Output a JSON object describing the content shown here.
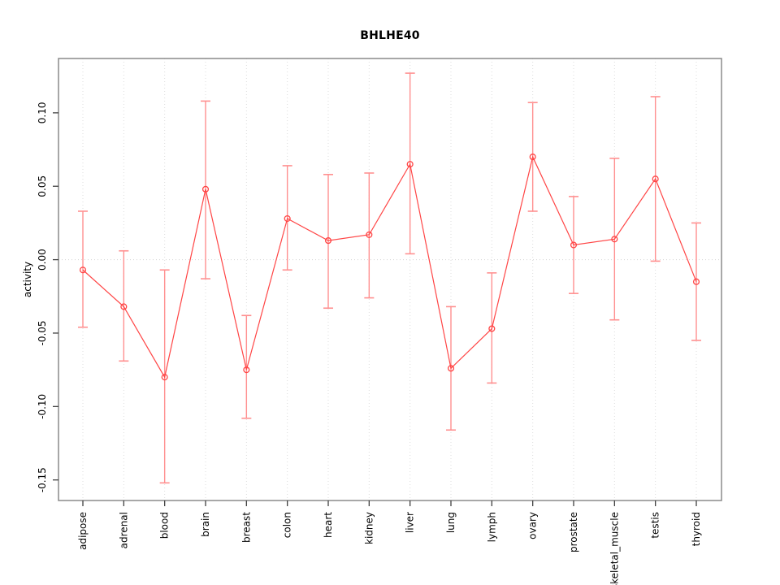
{
  "chart_data": {
    "type": "line",
    "title": "BHLHE40",
    "xlabel": "",
    "ylabel": "activity",
    "ylim": [
      -0.164,
      0.137
    ],
    "grid": "vertical dotted gridline per category; dotted horizontal reference line at y=0; no legend",
    "point_style": "open circle with vertical error bars (caps)",
    "yticks": [
      {
        "label": "0.10",
        "value": 0.1
      },
      {
        "label": "0.05",
        "value": 0.05
      },
      {
        "label": "0.00",
        "value": 0.0
      },
      {
        "label": "-0.05",
        "value": -0.05
      },
      {
        "label": "-0.10",
        "value": -0.1
      },
      {
        "label": "-0.15",
        "value": -0.15
      }
    ],
    "categories": [
      "adipose",
      "adrenal",
      "blood",
      "brain",
      "breast",
      "colon",
      "heart",
      "kidney",
      "liver",
      "lung",
      "lymph",
      "ovary",
      "prostate",
      "skeletal_muscle",
      "testis",
      "thyroid"
    ],
    "series": [
      {
        "name": "activity",
        "values": [
          -0.007,
          -0.032,
          -0.08,
          0.048,
          -0.075,
          0.028,
          0.013,
          0.017,
          0.065,
          -0.074,
          -0.047,
          0.07,
          0.01,
          0.014,
          0.055,
          -0.015
        ],
        "lower": [
          -0.046,
          -0.069,
          -0.152,
          -0.013,
          -0.108,
          -0.007,
          -0.033,
          -0.026,
          0.004,
          -0.116,
          -0.084,
          0.033,
          -0.023,
          -0.041,
          -0.001,
          -0.055
        ],
        "upper": [
          0.033,
          0.006,
          -0.007,
          0.108,
          -0.038,
          0.064,
          0.058,
          0.059,
          0.127,
          -0.032,
          -0.009,
          0.107,
          0.043,
          0.069,
          0.111,
          0.025
        ]
      }
    ],
    "colors": {
      "series": "#ff4545",
      "error_bar": "#ff9090",
      "grid": "#dcdcdc",
      "zero_line": "#d4d4d4",
      "frame": "#8a8a8a",
      "tick": "#404040",
      "text": "#000000"
    }
  }
}
